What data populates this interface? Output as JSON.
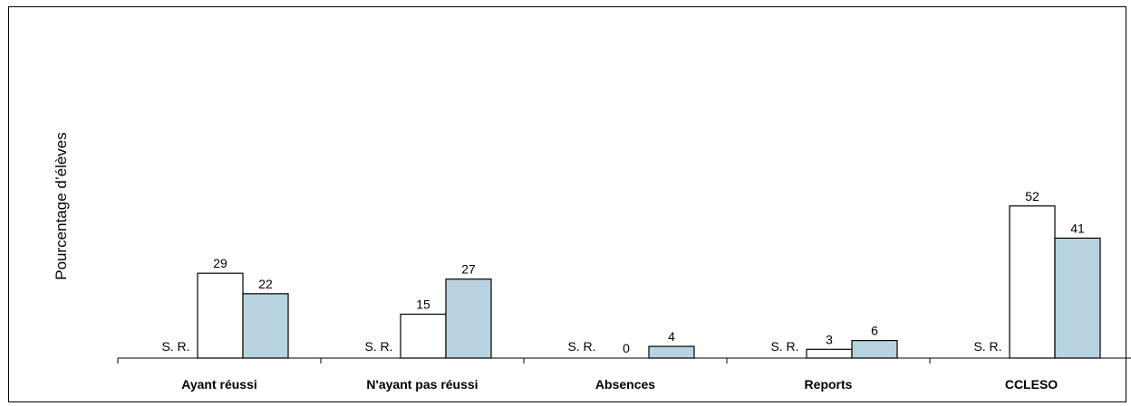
{
  "chart_data": {
    "type": "bar",
    "title": "",
    "ylabel": "Pourcentage d’élèves",
    "xlabel": "",
    "categories": [
      "Ayant réussi",
      "N'ayant pas réussi",
      "Absences",
      "Reports",
      "CCLESO"
    ],
    "series": [
      {
        "values": [
          null,
          null,
          null,
          null,
          null
        ],
        "labels": [
          "S. R.",
          "S. R.",
          "S. R.",
          "S. R.",
          "S. R."
        ],
        "fill": "#ffffff"
      },
      {
        "values": [
          29,
          15,
          0,
          3,
          52
        ],
        "fill": "#ffffff"
      },
      {
        "values": [
          22,
          27,
          4,
          6,
          41
        ],
        "fill": "#b8d3df"
      }
    ],
    "ylim": [
      0,
      100
    ],
    "grid": false,
    "legend": "none"
  }
}
